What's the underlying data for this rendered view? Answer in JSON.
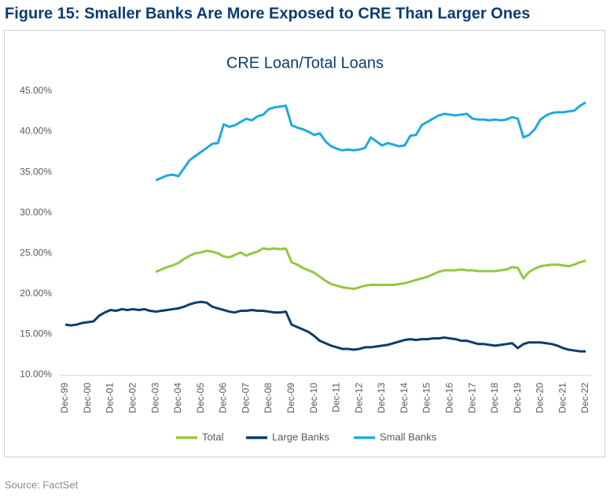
{
  "header": {
    "title": "Figure 15: Smaller Banks Are More Exposed to CRE Than Larger Ones",
    "source": "Source: FactSet"
  },
  "chart_data": {
    "type": "line",
    "title": "CRE Loan/Total Loans",
    "categories": [
      "Dec-99",
      null,
      null,
      null,
      "Dec-00",
      null,
      null,
      null,
      "Dec-01",
      null,
      null,
      null,
      "Dec-02",
      null,
      null,
      null,
      "Dec-03",
      null,
      null,
      null,
      "Dec-04",
      null,
      null,
      null,
      "Dec-05",
      null,
      null,
      null,
      "Dec-06",
      null,
      null,
      null,
      "Dec-07",
      null,
      null,
      null,
      "Dec-08",
      null,
      null,
      null,
      "Dec-09",
      null,
      null,
      null,
      "Dec-10",
      null,
      null,
      null,
      "Dec-11",
      null,
      null,
      null,
      "Dec-12",
      null,
      null,
      null,
      "Dec-13",
      null,
      null,
      null,
      "Dec-14",
      null,
      null,
      null,
      "Dec-15",
      null,
      null,
      null,
      "Dec-16",
      null,
      null,
      null,
      "Dec-17",
      null,
      null,
      null,
      "Dec-18",
      null,
      null,
      null,
      "Dec-19",
      null,
      null,
      null,
      "Dec-20",
      null,
      null,
      null,
      "Dec-21",
      null,
      null,
      null,
      "Dec-22"
    ],
    "series": [
      {
        "name": "Total",
        "color": "#92c83e",
        "values": [
          null,
          null,
          null,
          null,
          null,
          null,
          null,
          null,
          null,
          null,
          null,
          null,
          null,
          null,
          null,
          null,
          22.7,
          23.0,
          23.3,
          23.5,
          23.8,
          24.3,
          24.7,
          25.0,
          25.1,
          25.3,
          25.2,
          25.0,
          24.6,
          24.5,
          24.8,
          25.1,
          24.7,
          25.0,
          25.2,
          25.6,
          25.5,
          25.6,
          25.5,
          25.6,
          23.9,
          23.6,
          23.2,
          22.9,
          22.6,
          22.1,
          21.6,
          21.2,
          21.0,
          20.8,
          20.7,
          20.6,
          20.8,
          21.0,
          21.1,
          21.1,
          21.1,
          21.1,
          21.1,
          21.2,
          21.3,
          21.5,
          21.7,
          21.9,
          22.1,
          22.4,
          22.7,
          22.9,
          22.9,
          22.9,
          23.0,
          22.9,
          22.9,
          22.8,
          22.8,
          22.8,
          22.8,
          22.9,
          23.0,
          23.3,
          23.2,
          21.9,
          22.7,
          23.1,
          23.4,
          23.5,
          23.6,
          23.6,
          23.5,
          23.4,
          23.6,
          23.9,
          24.1
        ]
      },
      {
        "name": "Large Banks",
        "color": "#0c3c6e",
        "values": [
          16.2,
          16.1,
          16.2,
          16.4,
          16.5,
          16.6,
          17.3,
          17.7,
          18.0,
          17.9,
          18.1,
          18.0,
          18.1,
          18.0,
          18.1,
          17.9,
          17.8,
          17.9,
          18.0,
          18.1,
          18.2,
          18.4,
          18.7,
          18.9,
          19.0,
          18.9,
          18.4,
          18.2,
          18.0,
          17.8,
          17.7,
          17.9,
          17.9,
          18.0,
          17.9,
          17.9,
          17.8,
          17.7,
          17.7,
          17.8,
          16.2,
          15.9,
          15.6,
          15.3,
          14.8,
          14.2,
          13.9,
          13.6,
          13.4,
          13.2,
          13.2,
          13.1,
          13.2,
          13.4,
          13.4,
          13.5,
          13.6,
          13.7,
          13.9,
          14.1,
          14.3,
          14.4,
          14.3,
          14.4,
          14.4,
          14.5,
          14.5,
          14.6,
          14.5,
          14.4,
          14.2,
          14.2,
          14.0,
          13.8,
          13.8,
          13.7,
          13.6,
          13.7,
          13.8,
          13.9,
          13.3,
          13.8,
          14.0,
          14.0,
          14.0,
          13.9,
          13.8,
          13.6,
          13.3,
          13.1,
          13.0,
          12.9,
          12.9
        ]
      },
      {
        "name": "Small Banks",
        "color": "#1fa9e1",
        "values": [
          null,
          null,
          null,
          null,
          null,
          null,
          null,
          null,
          null,
          null,
          null,
          null,
          null,
          null,
          null,
          null,
          34.0,
          34.3,
          34.6,
          34.7,
          34.5,
          35.5,
          36.5,
          37.0,
          37.5,
          38.0,
          38.5,
          38.6,
          40.9,
          40.6,
          40.8,
          41.2,
          41.6,
          41.4,
          41.9,
          42.1,
          42.8,
          43.0,
          43.1,
          43.2,
          40.8,
          40.5,
          40.3,
          40.0,
          39.6,
          39.8,
          38.8,
          38.2,
          37.9,
          37.7,
          37.8,
          37.7,
          37.8,
          38.0,
          39.3,
          38.8,
          38.3,
          38.6,
          38.4,
          38.2,
          38.3,
          39.5,
          39.6,
          40.8,
          41.2,
          41.6,
          42.0,
          42.2,
          42.1,
          42.0,
          42.1,
          42.2,
          41.6,
          41.5,
          41.5,
          41.4,
          41.5,
          41.4,
          41.5,
          41.8,
          41.6,
          39.3,
          39.6,
          40.3,
          41.5,
          42.0,
          42.3,
          42.4,
          42.4,
          42.5,
          42.6,
          43.2,
          43.6
        ]
      }
    ],
    "ylim": [
      10,
      45
    ],
    "yticks": [
      {
        "value": 10,
        "label": "10.00%"
      },
      {
        "value": 15,
        "label": "15.00%"
      },
      {
        "value": 20,
        "label": "20.00%"
      },
      {
        "value": 25,
        "label": "25.00%"
      },
      {
        "value": 30,
        "label": "30.00%"
      },
      {
        "value": 35,
        "label": "35.00%"
      },
      {
        "value": 40,
        "label": "40.00%"
      },
      {
        "value": 45,
        "label": "45.00%"
      }
    ],
    "grid": false,
    "legend": "bottom"
  }
}
